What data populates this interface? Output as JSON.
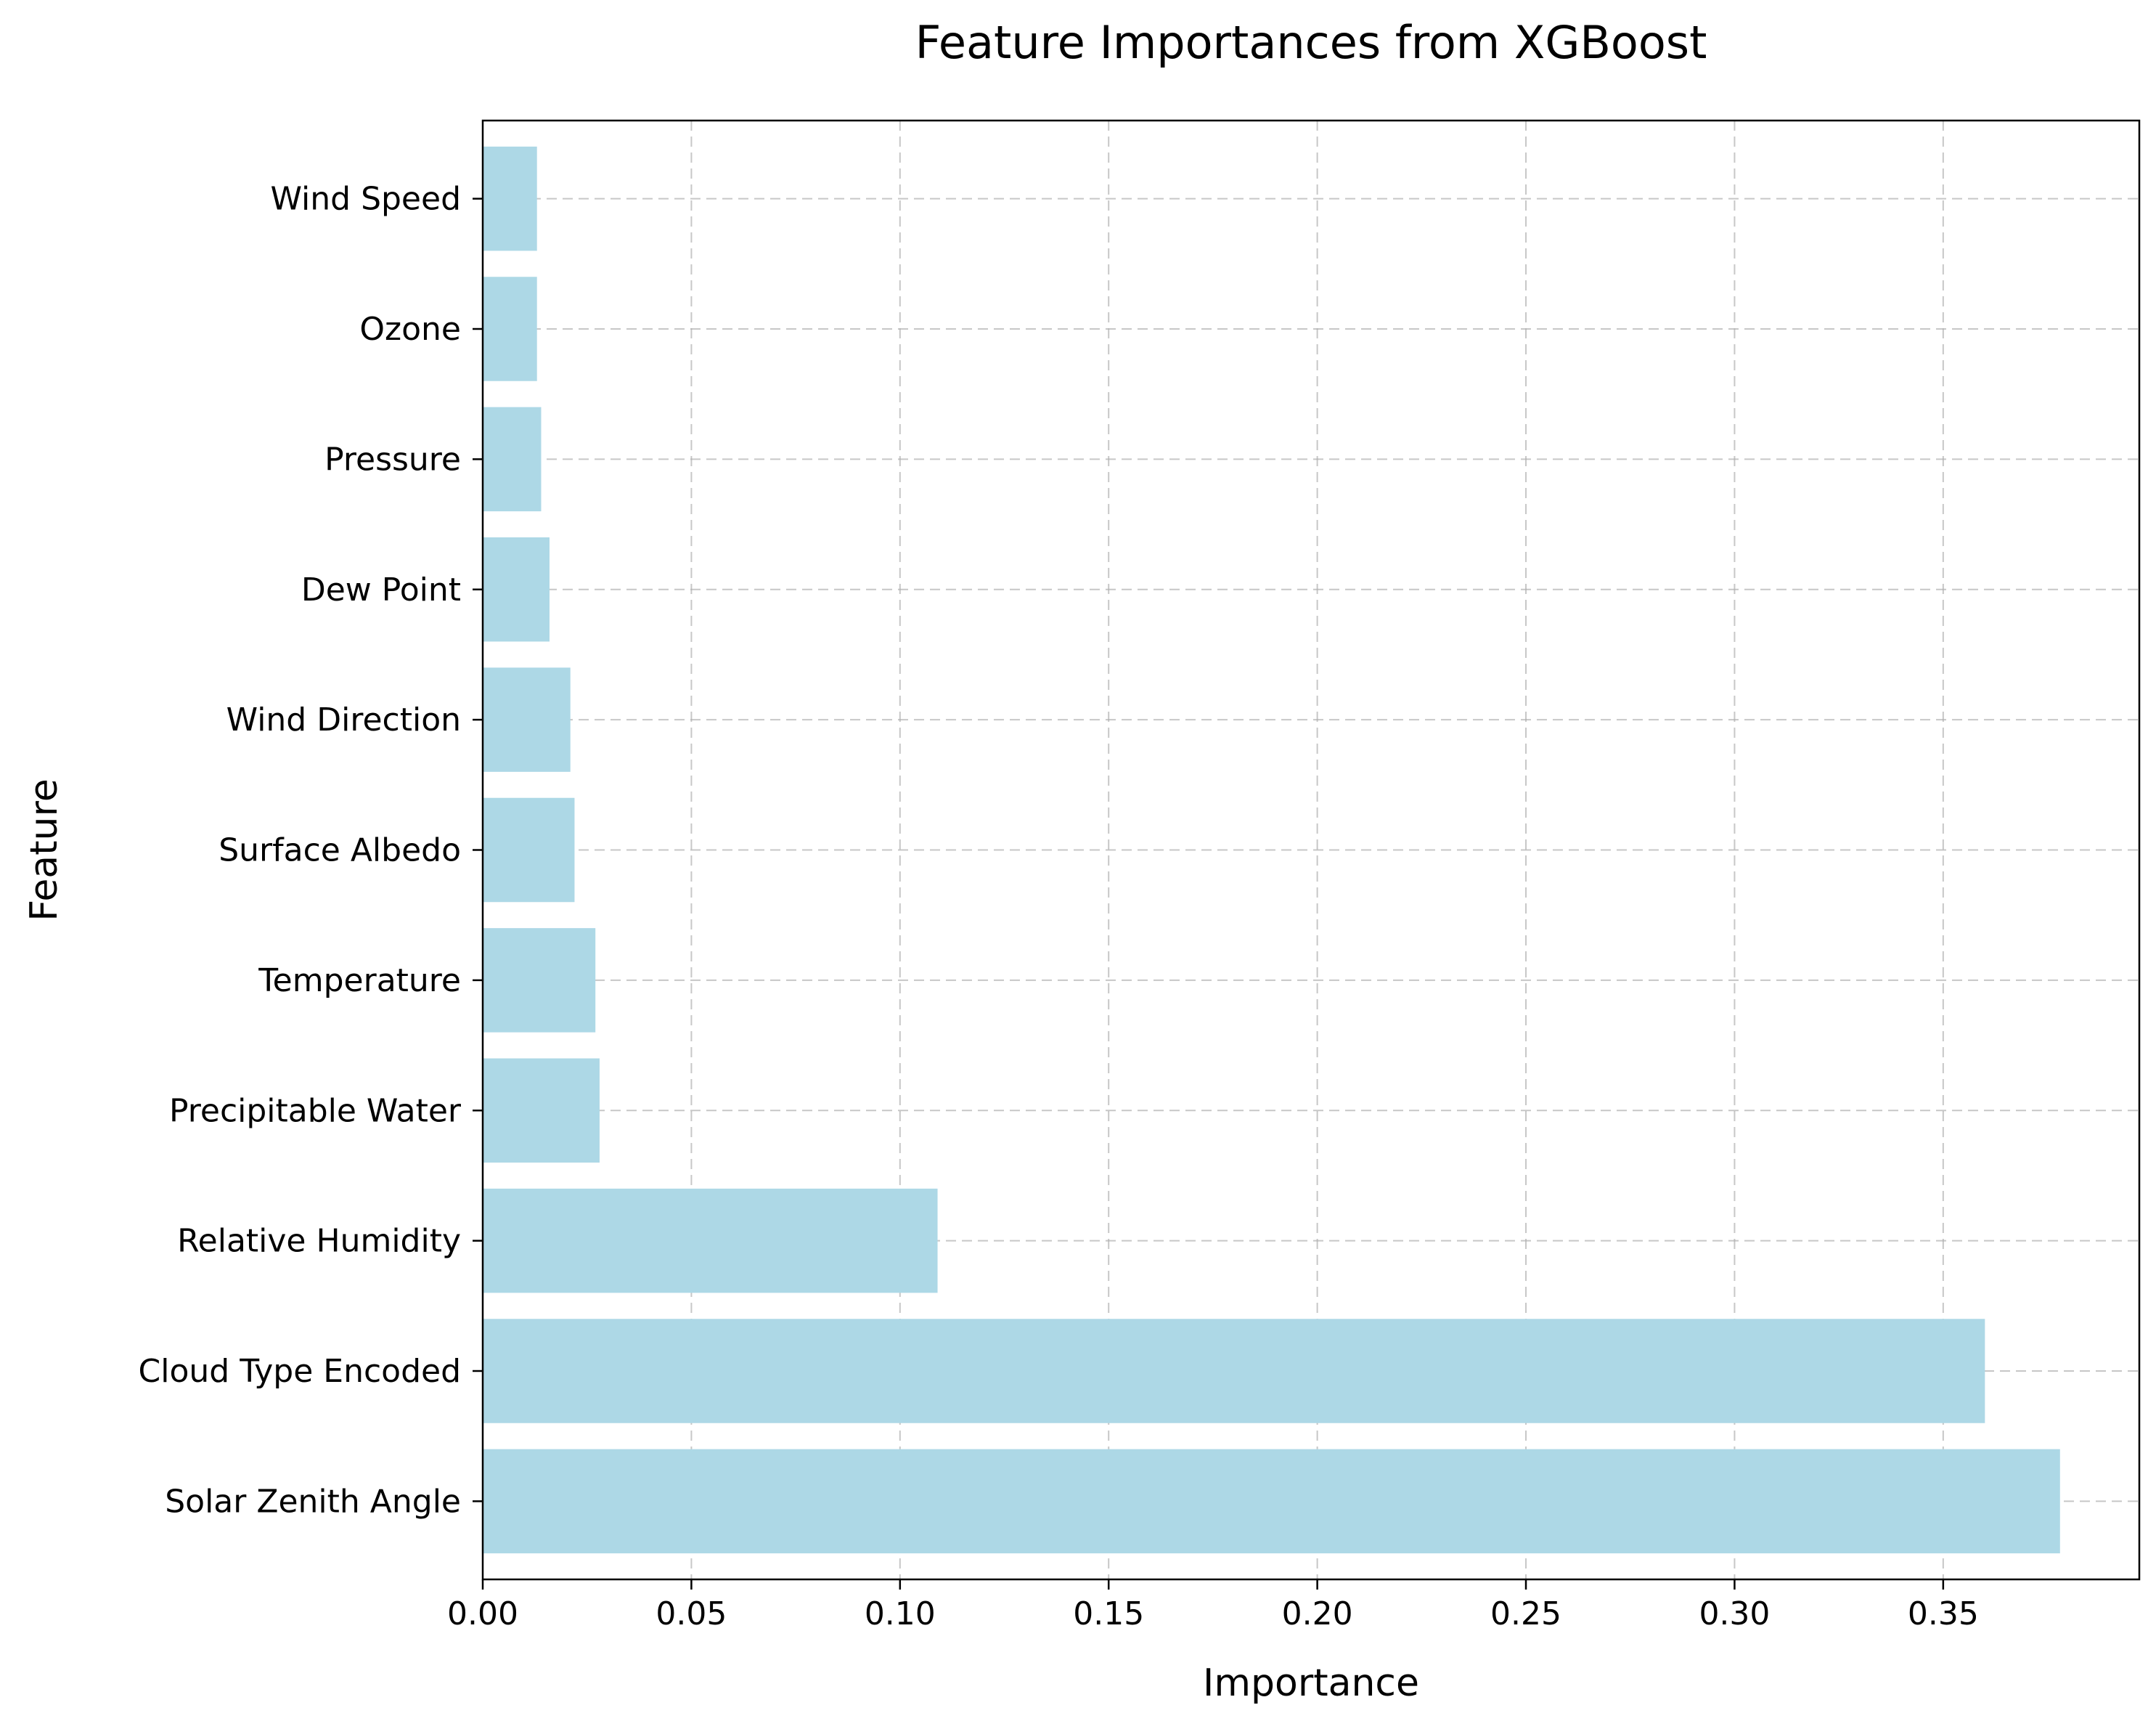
{
  "chart_data": {
    "type": "bar",
    "orientation": "horizontal",
    "title": "Feature Importances from XGBoost",
    "xlabel": "Importance",
    "ylabel": "Feature",
    "categories": [
      "Solar Zenith Angle",
      "Cloud Type Encoded",
      "Relative Humidity",
      "Precipitable Water",
      "Temperature",
      "Surface Albedo",
      "Wind Direction",
      "Dew Point",
      "Pressure",
      "Ozone",
      "Wind Speed"
    ],
    "values": [
      0.378,
      0.36,
      0.109,
      0.028,
      0.027,
      0.022,
      0.021,
      0.016,
      0.014,
      0.013,
      0.013
    ],
    "xlim": [
      0,
      0.397
    ],
    "xticks": [
      "0.00",
      "0.05",
      "0.10",
      "0.15",
      "0.20",
      "0.25",
      "0.30",
      "0.35"
    ],
    "grid": true,
    "bar_color": "#add8e6"
  }
}
